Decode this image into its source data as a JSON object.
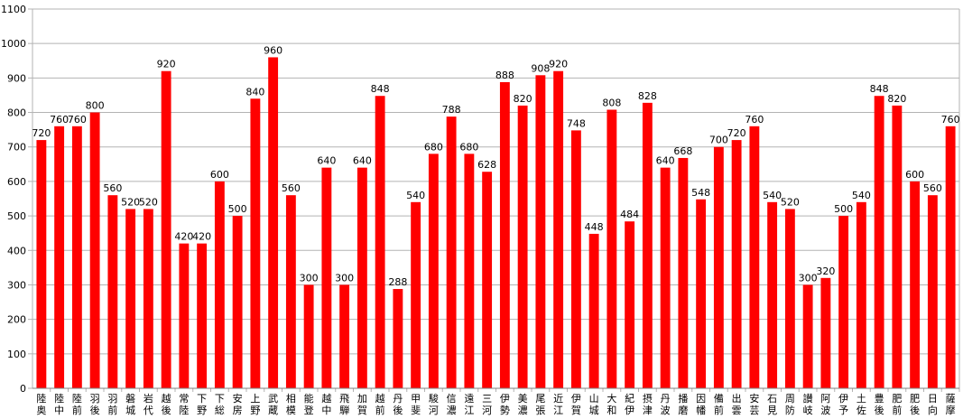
{
  "chart_data": {
    "type": "bar",
    "title": "",
    "xlabel": "",
    "ylabel": "",
    "ylim": [
      0,
      1100
    ],
    "ytick_step": 100,
    "grid": true,
    "bar_color": "#ff0000",
    "grid_color": "#b3b3b3",
    "categories": [
      "陸奥",
      "陸中",
      "陸前",
      "羽後",
      "羽前",
      "磐城",
      "岩代",
      "越後",
      "常陸",
      "下野",
      "下総",
      "安房",
      "上野",
      "武蔵",
      "相模",
      "能登",
      "越中",
      "飛騨",
      "加賀",
      "越前",
      "丹後",
      "甲斐",
      "駿河",
      "信濃",
      "遠江",
      "三河",
      "伊勢",
      "美濃",
      "尾張",
      "近江",
      "伊賀",
      "山城",
      "大和",
      "紀伊",
      "摂津",
      "丹波",
      "播磨",
      "因幡",
      "備前",
      "出雲",
      "安芸",
      "石見",
      "周防",
      "讃岐",
      "阿波",
      "伊予",
      "土佐",
      "豊後",
      "肥前",
      "肥後",
      "日向",
      "薩摩"
    ],
    "values": [
      720,
      760,
      760,
      800,
      560,
      520,
      520,
      920,
      420,
      420,
      600,
      500,
      840,
      960,
      560,
      300,
      640,
      300,
      640,
      848,
      288,
      540,
      680,
      788,
      680,
      628,
      888,
      820,
      908,
      920,
      748,
      448,
      808,
      484,
      828,
      640,
      668,
      548,
      700,
      720,
      760,
      540,
      520,
      300,
      320,
      500,
      540,
      848,
      820,
      600,
      560,
      760
    ]
  }
}
